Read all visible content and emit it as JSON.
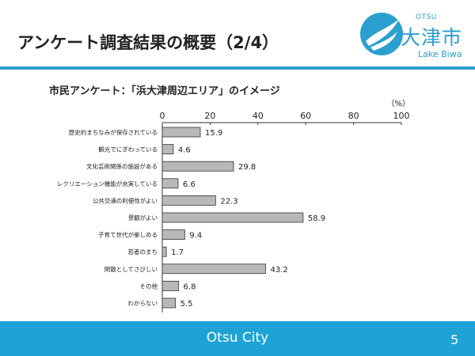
{
  "slide": {
    "title": "アンケート調査結果の概要（2/4）"
  },
  "logo": {
    "top_text": "OTSU",
    "city_text": "大津市",
    "bottom_text": "Lake Biwa"
  },
  "footer": {
    "title": "Otsu City",
    "page_number": "5"
  },
  "colors": {
    "accent": "#1ea3d6",
    "bar_fill": "#b8b8b8",
    "bar_stroke": "#333333"
  },
  "chart_data": {
    "type": "bar",
    "orientation": "horizontal",
    "title": "市民アンケート：「浜大津周辺エリア」のイメージ",
    "unit_label": "（%）",
    "xlim": [
      0,
      100
    ],
    "ticks": [
      "0",
      "20",
      "40",
      "60",
      "80",
      "100"
    ],
    "categories": [
      "歴史的まちなみが保存されている",
      "観光でにぎわっている",
      "文化芸術関係の施設がある",
      "レクリエーション機能が充実している",
      "公共交通の利便性がよい",
      "景観がよい",
      "子育て世代が楽しめる",
      "若者のまち",
      "閑散としてさびしい",
      "その他",
      "わからない"
    ],
    "values": [
      15.9,
      4.6,
      29.8,
      6.6,
      22.3,
      58.9,
      9.4,
      1.7,
      43.2,
      6.8,
      5.5
    ],
    "value_labels": [
      "15.9",
      "4.6",
      "29.8",
      "6.6",
      "22.3",
      "58.9",
      "9.4",
      "1.7",
      "43.2",
      "6.8",
      "5.5"
    ],
    "grid": false,
    "legend": "none"
  }
}
